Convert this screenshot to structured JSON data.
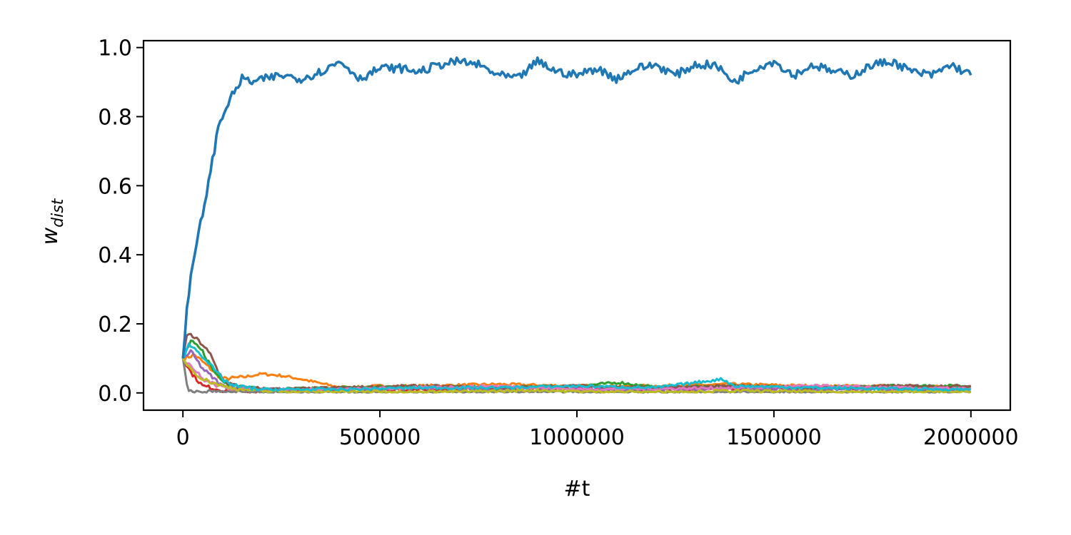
{
  "chart_data": {
    "type": "line",
    "title": "",
    "xlabel": "#t",
    "ylabel": {
      "base": "w",
      "subscript": "dist"
    },
    "xlim": [
      -100000,
      2100000
    ],
    "ylim": [
      -0.05,
      1.02
    ],
    "xticks": [
      0,
      500000,
      1000000,
      1500000,
      2000000
    ],
    "xtick_labels": [
      "0",
      "500000",
      "1000000",
      "1500000",
      "2000000"
    ],
    "yticks": [
      0.0,
      0.2,
      0.4,
      0.6,
      0.8,
      1.0
    ],
    "ytick_labels": [
      "0.0",
      "0.2",
      "0.4",
      "0.6",
      "0.8",
      "1.0"
    ],
    "grid": false,
    "legend": "none",
    "series": [
      {
        "color": "#1f77b4",
        "x": [
          0,
          10000,
          20000,
          30000,
          50000,
          70000,
          90000,
          110000,
          130000,
          150000,
          180000,
          210000,
          250000,
          300000,
          350000,
          400000,
          450000,
          500000,
          550000,
          600000,
          650000,
          700000,
          750000,
          800000,
          850000,
          900000,
          950000,
          1000000,
          1050000,
          1100000,
          1150000,
          1200000,
          1250000,
          1300000,
          1350000,
          1400000,
          1450000,
          1500000,
          1550000,
          1600000,
          1650000,
          1700000,
          1750000,
          1800000,
          1850000,
          1900000,
          1950000,
          2000000
        ],
        "y": [
          0.1,
          0.25,
          0.33,
          0.4,
          0.52,
          0.64,
          0.77,
          0.83,
          0.87,
          0.91,
          0.9,
          0.91,
          0.92,
          0.91,
          0.93,
          0.96,
          0.91,
          0.94,
          0.94,
          0.93,
          0.95,
          0.96,
          0.95,
          0.92,
          0.91,
          0.96,
          0.93,
          0.92,
          0.94,
          0.91,
          0.94,
          0.95,
          0.92,
          0.95,
          0.95,
          0.9,
          0.94,
          0.96,
          0.92,
          0.95,
          0.93,
          0.92,
          0.95,
          0.96,
          0.93,
          0.92,
          0.95,
          0.92
        ]
      },
      {
        "color": "#ff7f0e",
        "x": [
          0,
          30000,
          60000,
          100000,
          150000,
          200000,
          250000,
          300000,
          340000,
          380000,
          420000,
          500000,
          600000,
          800000,
          1000000,
          1200000,
          1400000,
          1600000,
          1800000,
          2000000
        ],
        "y": [
          0.1,
          0.11,
          0.08,
          0.04,
          0.045,
          0.055,
          0.05,
          0.04,
          0.03,
          0.02,
          0.015,
          0.02,
          0.02,
          0.025,
          0.02,
          0.02,
          0.025,
          0.02,
          0.02,
          0.015
        ]
      },
      {
        "color": "#2ca02c",
        "x": [
          0,
          20000,
          50000,
          80000,
          120000,
          200000,
          400000,
          600000,
          800000,
          1000000,
          1110000,
          1200000,
          1400000,
          1600000,
          1800000,
          2000000
        ],
        "y": [
          0.1,
          0.15,
          0.12,
          0.06,
          0.02,
          0.01,
          0.015,
          0.02,
          0.015,
          0.02,
          0.03,
          0.015,
          0.02,
          0.015,
          0.02,
          0.02
        ]
      },
      {
        "color": "#d62728",
        "x": [
          0,
          20000,
          50000,
          100000,
          200000,
          400000,
          600000,
          800000,
          1000000,
          1200000,
          1400000,
          1600000,
          1800000,
          2000000
        ],
        "y": [
          0.1,
          0.06,
          0.02,
          0.008,
          0.005,
          0.008,
          0.01,
          0.012,
          0.01,
          0.01,
          0.012,
          0.015,
          0.012,
          0.01
        ]
      },
      {
        "color": "#9467bd",
        "x": [
          0,
          20000,
          50000,
          100000,
          200000,
          400000,
          600000,
          800000,
          1000000,
          1200000,
          1400000,
          1600000,
          1800000,
          2000000
        ],
        "y": [
          0.1,
          0.12,
          0.07,
          0.02,
          0.01,
          0.012,
          0.015,
          0.01,
          0.012,
          0.01,
          0.012,
          0.01,
          0.01,
          0.01
        ]
      },
      {
        "color": "#8c564b",
        "x": [
          0,
          10000,
          30000,
          50000,
          70000,
          90000,
          110000,
          150000,
          250000,
          400000,
          600000,
          800000,
          1000000,
          1200000,
          1400000,
          1600000,
          1800000,
          2000000
        ],
        "y": [
          0.1,
          0.17,
          0.16,
          0.14,
          0.11,
          0.06,
          0.03,
          0.015,
          0.01,
          0.015,
          0.02,
          0.015,
          0.02,
          0.015,
          0.02,
          0.015,
          0.02,
          0.02
        ]
      },
      {
        "color": "#e377c2",
        "x": [
          0,
          20000,
          50000,
          100000,
          200000,
          400000,
          600000,
          800000,
          1000000,
          1200000,
          1400000,
          1600000,
          1800000,
          2000000
        ],
        "y": [
          0.1,
          0.08,
          0.04,
          0.015,
          0.008,
          0.01,
          0.015,
          0.02,
          0.01,
          0.012,
          0.015,
          0.02,
          0.015,
          0.012
        ]
      },
      {
        "color": "#7f7f7f",
        "x": [
          0,
          10000,
          20000,
          50000,
          100000,
          200000,
          400000,
          600000,
          800000,
          1000000,
          1200000,
          1400000,
          1600000,
          1800000,
          2000000
        ],
        "y": [
          0.1,
          0.02,
          0.003,
          0.002,
          0.002,
          0.002,
          0.002,
          0.002,
          0.002,
          0.002,
          0.002,
          0.002,
          0.002,
          0.002,
          0.002
        ]
      },
      {
        "color": "#bcbd22",
        "x": [
          0,
          20000,
          50000,
          100000,
          150000,
          200000,
          300000,
          400000,
          600000,
          800000,
          900000,
          1000000,
          1200000,
          1400000,
          1600000,
          1800000,
          2000000
        ],
        "y": [
          0.1,
          0.07,
          0.04,
          0.02,
          0.01,
          0.005,
          0.003,
          0.004,
          0.003,
          0.005,
          0.008,
          0.004,
          0.003,
          0.006,
          0.004,
          0.003,
          0.003
        ]
      },
      {
        "color": "#17becf",
        "x": [
          0,
          15000,
          40000,
          70000,
          100000,
          130000,
          200000,
          400000,
          600000,
          800000,
          1000000,
          1200000,
          1370000,
          1400000,
          1600000,
          1800000,
          2000000
        ],
        "y": [
          0.1,
          0.14,
          0.12,
          0.08,
          0.04,
          0.02,
          0.01,
          0.01,
          0.015,
          0.015,
          0.02,
          0.015,
          0.04,
          0.02,
          0.015,
          0.012,
          0.01
        ]
      }
    ]
  }
}
